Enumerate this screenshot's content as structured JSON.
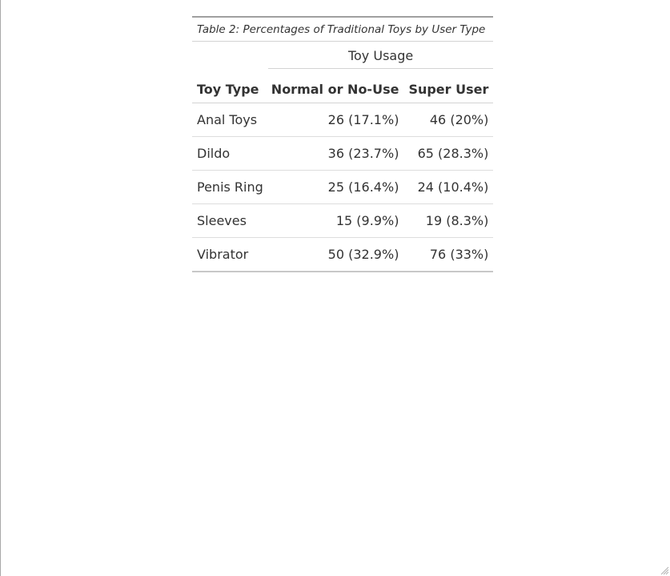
{
  "table": {
    "caption": "Table 2: Percentages of Traditional Toys by User Type",
    "spanner": "Toy Usage",
    "columns": [
      "Toy Type",
      "Normal or No-Use",
      "Super User"
    ],
    "rows": [
      [
        "Anal Toys",
        "26 (17.1%)",
        "46 (20%)"
      ],
      [
        "Dildo",
        "36 (23.7%)",
        "65 (28.3%)"
      ],
      [
        "Penis Ring",
        "25 (16.4%)",
        "24 (10.4%)"
      ],
      [
        "Sleeves",
        "15 (9.9%)",
        "19 (8.3%)"
      ],
      [
        "Vibrator",
        "50 (32.9%)",
        "76 (33%)"
      ]
    ]
  }
}
